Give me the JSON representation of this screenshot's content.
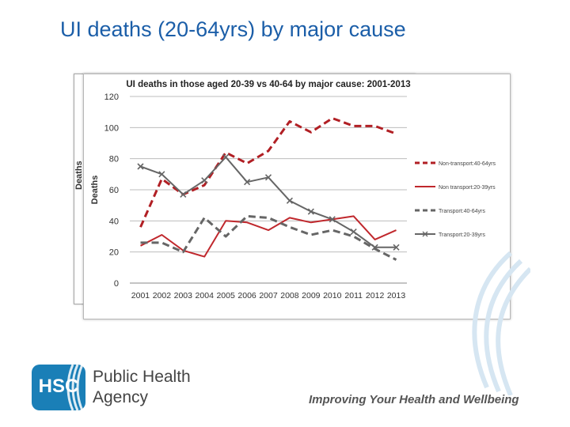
{
  "slide": {
    "title": "UI deaths (20-64yrs) by major cause",
    "back_chart_ylabel": "Deaths"
  },
  "footer": {
    "badge_text": "HSC",
    "org_line1": "Public Health",
    "org_line2": "Agency",
    "tagline": "Improving Your Health and Wellbeing"
  },
  "colors": {
    "title": "#1b5ea8",
    "dark_red": "#b11f24",
    "grey": "#666666",
    "brand_blue": "#1a7fb7"
  },
  "chart_data": {
    "type": "line",
    "title": "UI deaths in those aged 20-39 vs 40-64 by major cause: 2001-2013",
    "ylabel": "Deaths",
    "ylim": [
      0,
      120
    ],
    "yticks": [
      0,
      20,
      40,
      60,
      80,
      100,
      120
    ],
    "grid": true,
    "legend_position": "right",
    "x": [
      "2001",
      "2002",
      "2003",
      "2004",
      "2005",
      "2006",
      "2007",
      "2008",
      "2009",
      "2010",
      "2011",
      "2012",
      "2013"
    ],
    "series": [
      {
        "name": "Non-transport:40-64yrs",
        "color": "#b11f24",
        "style": "dashed",
        "values": [
          36,
          67,
          57,
          63,
          84,
          77,
          85,
          104,
          97,
          106,
          101,
          101,
          96
        ]
      },
      {
        "name": "Non transport:20-39yrs",
        "color": "#c0282d",
        "style": "solid",
        "values": [
          24,
          31,
          21,
          17,
          40,
          39,
          34,
          42,
          39,
          41,
          43,
          28,
          34
        ]
      },
      {
        "name": "Transport:40-64yrs",
        "color": "#666666",
        "style": "dashed",
        "values": [
          26,
          26,
          20,
          42,
          30,
          43,
          42,
          36,
          31,
          34,
          30,
          22,
          15
        ]
      },
      {
        "name": "Transport:20-39yrs",
        "color": "#666666",
        "style": "solid-markers",
        "values": [
          75,
          70,
          57,
          66,
          81,
          65,
          68,
          53,
          46,
          41,
          33,
          23,
          23
        ]
      }
    ]
  }
}
